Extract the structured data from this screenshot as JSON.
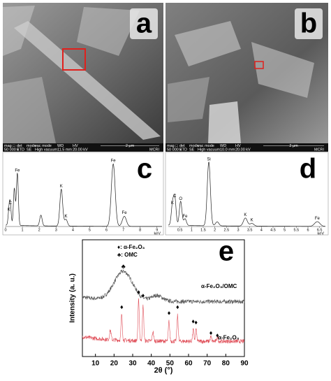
{
  "sem_panels": [
    {
      "label": "a",
      "info_header": [
        "mag □",
        "det",
        "mode",
        "vac mode",
        "WD",
        "HV"
      ],
      "info_values": [
        "50 000 x",
        "ETD",
        "SE",
        "High vacuum",
        "11.5 mm",
        "20.00 kV"
      ],
      "scale": "2 μm",
      "lab": "MCRI"
    },
    {
      "label": "b",
      "info_header": [
        "mag □",
        "det",
        "mode",
        "vac mode",
        "WD",
        "HV"
      ],
      "info_values": [
        "50 000 x",
        "ETD",
        "SE",
        "High vacuum",
        "10.0 mm",
        "20.00 kV"
      ],
      "scale": "2 μm",
      "lab": "MCRI"
    }
  ],
  "eds_panels": [
    {
      "type": "spectrum",
      "label": "c",
      "xlim": [
        0,
        9.3
      ],
      "xticks": [
        0,
        1,
        2,
        3,
        4,
        5,
        6,
        7,
        8,
        9
      ],
      "unit": "keV",
      "ylim": [
        0,
        1
      ],
      "peaks": [
        {
          "x": 0.2,
          "h": 0.2,
          "label": "K"
        },
        {
          "x": 0.28,
          "h": 0.3,
          "label": "C"
        },
        {
          "x": 0.52,
          "h": 0.55
        },
        {
          "x": 0.7,
          "h": 0.78,
          "label": "Fe"
        },
        {
          "x": 2.1,
          "h": 0.16
        },
        {
          "x": 3.31,
          "h": 0.55,
          "label": "K"
        },
        {
          "x": 3.59,
          "h": 0.1,
          "label": "K"
        },
        {
          "x": 6.4,
          "h": 0.93,
          "label": "Fe"
        },
        {
          "x": 7.06,
          "h": 0.15,
          "label": "Fe"
        }
      ]
    },
    {
      "type": "spectrum",
      "label": "d",
      "xlim": [
        0,
        6.75
      ],
      "xticks": [
        0.5,
        1,
        1.5,
        2,
        2.5,
        3,
        3.5,
        4,
        4.5,
        5,
        5.5,
        6,
        6.5
      ],
      "unit": "keV",
      "ylim": [
        0,
        1
      ],
      "peaks": [
        {
          "x": 0.18,
          "h": 0.3,
          "label": "K"
        },
        {
          "x": 0.28,
          "h": 0.4,
          "label": "C"
        },
        {
          "x": 0.53,
          "h": 0.36,
          "label": "O"
        },
        {
          "x": 0.72,
          "h": 0.1,
          "label": "Fe"
        },
        {
          "x": 1.74,
          "h": 0.95,
          "label": "Si"
        },
        {
          "x": 2.1,
          "h": 0.06
        },
        {
          "x": 3.31,
          "h": 0.12,
          "label": "K"
        },
        {
          "x": 3.59,
          "h": 0.04,
          "label": "K"
        },
        {
          "x": 6.4,
          "h": 0.07,
          "label": "Fe"
        }
      ]
    }
  ],
  "chart_data": {
    "type": "xrd",
    "label": "e",
    "xlabel": "2θ (°)",
    "ylabel": "Intensity (a. u.)",
    "xlim": [
      3,
      90
    ],
    "xticks": [
      10,
      20,
      30,
      40,
      50,
      60,
      70,
      80,
      90
    ],
    "ylim": [
      0,
      1
    ],
    "legend": [
      "♦: α-Fe₂O₃",
      "♣: OMC"
    ],
    "series": [
      {
        "name": "α-Fe₂O₃/OMC",
        "color": "#555555",
        "baseline": 0.47,
        "peaks": [
          {
            "x": 25,
            "h": 0.25,
            "w": 5
          },
          {
            "x": 43,
            "h": 0.05,
            "w": 3
          }
        ]
      },
      {
        "name": "α-Fe₂O₃",
        "color": "#e0505a",
        "baseline": 0.13,
        "peaks": [
          {
            "x": 18,
            "h": 0.08,
            "w": 0.4
          },
          {
            "x": 24.1,
            "h": 0.22,
            "w": 0.35
          },
          {
            "x": 33.2,
            "h": 0.35,
            "w": 0.35
          },
          {
            "x": 35.6,
            "h": 0.3,
            "w": 0.35
          },
          {
            "x": 40.9,
            "h": 0.08,
            "w": 0.35
          },
          {
            "x": 49.5,
            "h": 0.17,
            "w": 0.35
          },
          {
            "x": 54.1,
            "h": 0.22,
            "w": 0.35
          },
          {
            "x": 62.5,
            "h": 0.1,
            "w": 0.35
          },
          {
            "x": 64,
            "h": 0.1,
            "w": 0.35
          },
          {
            "x": 72,
            "h": 0.04,
            "w": 0.35
          },
          {
            "x": 75.5,
            "h": 0.04,
            "w": 0.35
          }
        ]
      }
    ],
    "markers": [
      {
        "symbol": "♦",
        "x": [
          24.1,
          33.2,
          35.6,
          49.5,
          54.1,
          62.5,
          64,
          72,
          75.5
        ],
        "y": [
          0.42,
          0.55,
          0.52,
          0.37,
          0.42,
          0.3,
          0.29,
          0.2,
          0.18
        ]
      },
      {
        "symbol": "♣",
        "x": [
          25
        ],
        "y": [
          0.77
        ]
      }
    ]
  }
}
